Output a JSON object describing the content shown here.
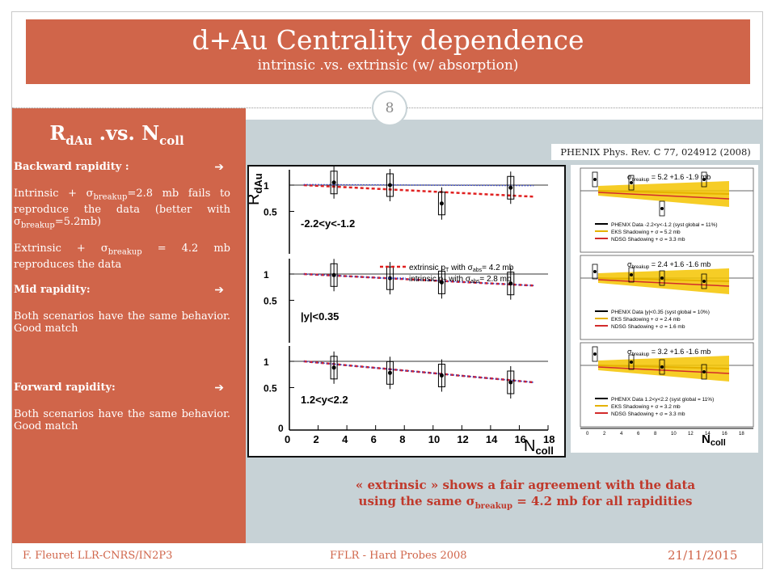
{
  "slide": {
    "title": "d+Au Centrality dependence",
    "subtitle": "intrinsic .vs. extrinsic (w/ absorption)",
    "number": "8"
  },
  "left_panel": {
    "heading_r": "R",
    "heading_r_sub": "dAu",
    "heading_vs": " .vs. N",
    "heading_n_sub": "coll",
    "backward": {
      "label": "Backward rapidity :",
      "p1_a": "Intrinsic + σ",
      "p1_sub": "breakup",
      "p1_b": "=2.8 mb fails to reproduce the data (better with σ",
      "p1_sub2": "breakup",
      "p1_c": "=5.2mb)",
      "p2_a": "Extrinsic + σ",
      "p2_sub": "breakup",
      "p2_b": " = 4.2 mb reproduces the data"
    },
    "mid": {
      "label": "Mid rapidity:",
      "text": "Both scenarios have the same behavior. Good match"
    },
    "forward": {
      "label": "Forward rapidity:",
      "text": "Both scenarios have the same behavior. Good match"
    },
    "arrow_glyph": "➔"
  },
  "reference": "PHENIX Phys. Rev. C 77, 024912 (2008)",
  "conclusion": {
    "line1": "« extrinsic » shows a fair agreement with the data",
    "line2_a": "using the same σ",
    "line2_sub": "breakup",
    "line2_b": " = 4.2 mb for all rapidities"
  },
  "footer": {
    "author": "F. Fleuret LLR-CNRS/IN2P3",
    "event": "FFLR - Hard Probes 2008",
    "date": "21/11/2015"
  },
  "chart_data": {
    "type": "scatter",
    "ylabel": "R_dAu",
    "ylabel_main": "R",
    "ylabel_sub": "dAu",
    "xlabel": "N_coll",
    "xlabel_main": "N",
    "xlabel_sub": "coll",
    "xlim": [
      0,
      18
    ],
    "ylim": [
      0,
      1.3
    ],
    "x_ticks": [
      "0",
      "2",
      "4",
      "6",
      "8",
      "10",
      "12",
      "14",
      "16",
      "18"
    ],
    "y_ticks": [
      "0.5",
      "1"
    ],
    "y_tick_bottom": "0",
    "legend": {
      "extrinsic": "extrinsic p_T with σ_abs = 4.2 mb",
      "intrinsic": "intrinsic p_T with σ_abs = 2.8 mb",
      "extrinsic_text": "extrinsic p",
      "intrinsic_text": "intrinsic p",
      "with_sigma": " with σ",
      "abs_sub": "abs",
      "T_sub": "T",
      "extrinsic_val": "= 4.2 mb",
      "intrinsic_val": "= 2.8 mb"
    },
    "panels": [
      {
        "label": "-2.2<y<-1.2",
        "data_x": [
          3.1,
          7.0,
          10.6,
          15.4
        ],
        "data_y": [
          1.05,
          1.0,
          0.65,
          0.95
        ],
        "extrinsic": {
          "x": [
            1,
            17
          ],
          "y": [
            1.0,
            0.78
          ]
        },
        "intrinsic": {
          "x": [
            1,
            17
          ],
          "y": [
            1.01,
            0.99
          ]
        }
      },
      {
        "label": "|y|<0.35",
        "data_x": [
          3.1,
          7.0,
          10.6,
          15.4
        ],
        "data_y": [
          0.98,
          0.92,
          0.84,
          0.82
        ],
        "extrinsic": {
          "x": [
            1,
            17
          ],
          "y": [
            1.0,
            0.78
          ]
        },
        "intrinsic": {
          "x": [
            1,
            17
          ],
          "y": [
            1.0,
            0.78
          ]
        }
      },
      {
        "label": "1.2<y<2.2",
        "data_x": [
          3.1,
          7.0,
          10.6,
          15.4
        ],
        "data_y": [
          0.88,
          0.78,
          0.73,
          0.6
        ],
        "extrinsic": {
          "x": [
            1,
            17
          ],
          "y": [
            1.0,
            0.6
          ]
        },
        "intrinsic": {
          "x": [
            1,
            17
          ],
          "y": [
            1.0,
            0.6
          ]
        }
      }
    ]
  },
  "phenix_figure": {
    "sigma_labels": [
      "σ_breakup = 5.2 mb",
      "σ_breakup = 2.4 mb",
      "σ_breakup = 3.2 mb"
    ],
    "sigma_main": [
      "σ",
      "σ",
      "σ"
    ],
    "sigma_values": [
      "= 5.2",
      "= 2.4",
      "= 3.2"
    ],
    "sigma_errors": [
      "+1.6 -1.9",
      "+1.6 -1.6",
      "+1.6 -1.6"
    ],
    "mb": "mb",
    "sigma_sub": "breakup",
    "legends": [
      [
        "PHENIX Data -2.2<y<-1.2 (syst global = 11%)",
        "EKS Shadowing + σ = 5.2 mb",
        "NDSG Shadowing + σ = 3.3 mb"
      ],
      [
        "PHENIX Data |y|<0.35 (syst global = 10%)",
        "EKS Shadowing + σ = 2.4 mb",
        "NDSG Shadowing + σ = 1.6 mb"
      ],
      [
        "PHENIX Data 1.2<y<2.2 (syst global = 11%)",
        "EKS Shadowing + σ = 3.2 mb",
        "NDSG Shadowing + σ = 3.3 mb"
      ]
    ],
    "xlabel_main": "N",
    "xlabel_sub": "coll",
    "x_ticks": [
      "0",
      "2",
      "4",
      "6",
      "8",
      "10",
      "12",
      "14",
      "16",
      "18"
    ],
    "colors": {
      "band": "#f5c400",
      "eks": "#e5b200",
      "ndsg": "#d22b2b"
    }
  }
}
